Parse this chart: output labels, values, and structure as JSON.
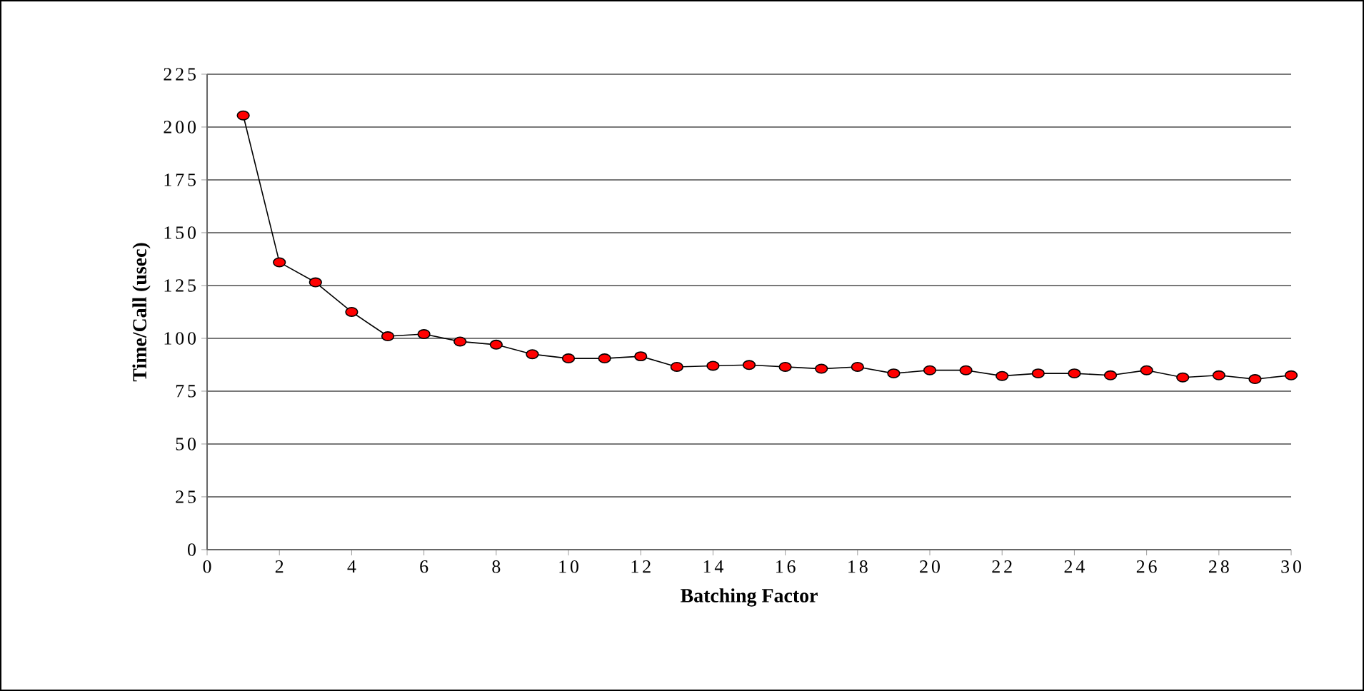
{
  "chart_data": {
    "type": "line",
    "xlabel": "Batching Factor",
    "ylabel": "Time/Call (usec)",
    "x": [
      1,
      2,
      3,
      4,
      5,
      6,
      7,
      8,
      9,
      10,
      11,
      12,
      13,
      14,
      15,
      16,
      17,
      18,
      19,
      20,
      21,
      22,
      23,
      24,
      25,
      26,
      27,
      28,
      29,
      30
    ],
    "series": [
      {
        "color": "#ff0000",
        "values": [
          205.5,
          136,
          126.5,
          112.5,
          101,
          102,
          98.5,
          97,
          92.5,
          90.5,
          90.5,
          91.5,
          86.5,
          87,
          87.4,
          86.5,
          85.6,
          86.5,
          83.4,
          84.9,
          84.9,
          82.2,
          83.4,
          83.4,
          82.5,
          84.9,
          81.5,
          82.5,
          80.7,
          82.5
        ]
      }
    ],
    "xlim": [
      0,
      30
    ],
    "xticks": [
      0,
      2,
      4,
      6,
      8,
      10,
      12,
      14,
      16,
      18,
      20,
      22,
      24,
      26,
      28,
      30
    ],
    "ylim": [
      0,
      225
    ],
    "yticks": [
      0,
      25,
      50,
      75,
      100,
      125,
      150,
      175,
      200,
      225
    ],
    "grid": "y",
    "marker": "circle",
    "line_style": "solid"
  }
}
